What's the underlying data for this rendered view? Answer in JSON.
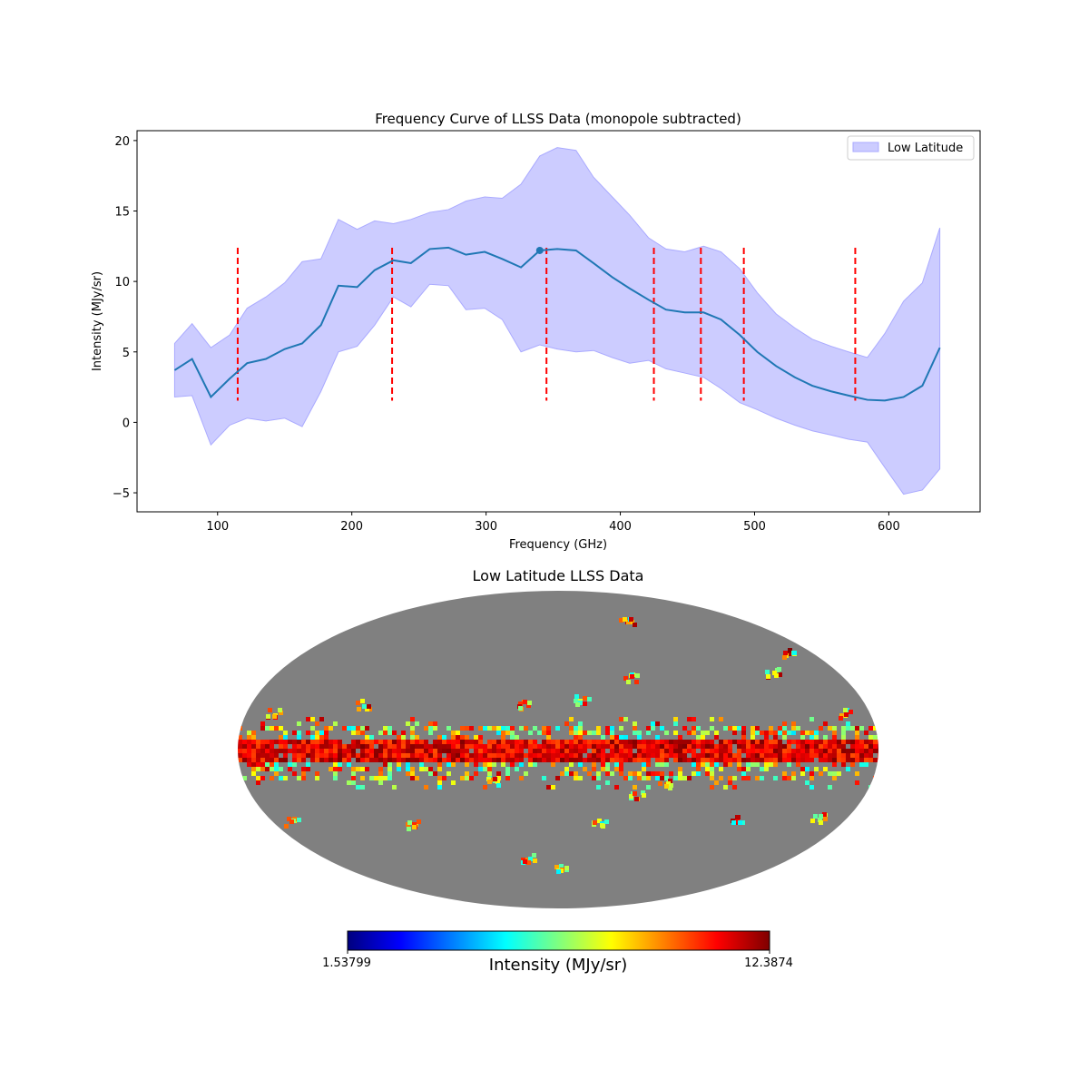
{
  "chart_data": [
    {
      "type": "line",
      "title": "Frequency Curve of LLSS Data (monopole subtracted)",
      "xlabel": "Frequency (GHz)",
      "ylabel": "Intensity (MJy/sr)",
      "xlim": [
        40,
        668
      ],
      "ylim": [
        -6.35,
        20.7
      ],
      "xticks": [
        100,
        200,
        300,
        400,
        500,
        600
      ],
      "yticks": [
        -5,
        0,
        5,
        10,
        15,
        20
      ],
      "legend": {
        "label": "Low Latitude",
        "placement": "top-right"
      },
      "colors": {
        "line": "#1f77b4",
        "band": "#ccccff",
        "band_edge": "#aaaaff",
        "vlines": "#ff0000"
      },
      "x": [
        68,
        81,
        95,
        109,
        122,
        136,
        150,
        163,
        177,
        190,
        204,
        217,
        231,
        244,
        258,
        272,
        285,
        299,
        312,
        326,
        340,
        353,
        367,
        380,
        394,
        407,
        421,
        434,
        448,
        462,
        475,
        489,
        502,
        516,
        530,
        543,
        557,
        570,
        584,
        597,
        611,
        625,
        638
      ],
      "series": [
        {
          "name": "mean",
          "values": [
            3.7,
            4.5,
            1.8,
            3.1,
            4.2,
            4.5,
            5.2,
            5.6,
            6.9,
            9.7,
            9.6,
            10.8,
            11.5,
            11.3,
            12.3,
            12.4,
            11.9,
            12.1,
            11.6,
            11.0,
            12.2,
            12.3,
            12.2,
            11.3,
            10.3,
            9.5,
            8.7,
            8.0,
            7.8,
            7.8,
            7.3,
            6.2,
            5.0,
            4.0,
            3.2,
            2.6,
            2.2,
            1.9,
            1.6,
            1.55,
            1.8,
            2.6,
            5.3
          ]
        },
        {
          "name": "upper",
          "values": [
            5.6,
            7.0,
            5.3,
            6.2,
            8.1,
            8.9,
            9.9,
            11.4,
            11.6,
            14.4,
            13.7,
            14.3,
            14.1,
            14.4,
            14.9,
            15.1,
            15.7,
            16.0,
            15.9,
            16.9,
            18.9,
            19.5,
            19.3,
            17.4,
            16.0,
            14.7,
            13.1,
            12.3,
            12.1,
            12.5,
            12.1,
            10.9,
            9.2,
            7.7,
            6.7,
            5.9,
            5.4,
            5.0,
            4.6,
            6.3,
            8.6,
            9.9,
            13.8
          ]
        },
        {
          "name": "lower",
          "values": [
            1.8,
            1.9,
            -1.6,
            -0.2,
            0.3,
            0.1,
            0.3,
            -0.3,
            2.2,
            5.0,
            5.4,
            6.9,
            8.9,
            8.2,
            9.8,
            9.7,
            8.0,
            8.1,
            7.3,
            5.0,
            5.5,
            5.2,
            5.0,
            5.1,
            4.6,
            4.2,
            4.4,
            3.8,
            3.5,
            3.2,
            2.4,
            1.4,
            0.9,
            0.3,
            -0.2,
            -0.6,
            -0.9,
            -1.2,
            -1.4,
            -3.2,
            -5.1,
            -4.8,
            -3.3
          ]
        }
      ],
      "highlight_point": {
        "x": 340,
        "y": 12.2
      },
      "vlines": {
        "x": [
          115,
          230,
          345,
          425,
          460,
          492,
          575
        ],
        "ymin": 1.54,
        "ymax": 12.39
      }
    },
    {
      "type": "heatmap",
      "title": "Low Latitude LLSS Data",
      "projection": "mollweide",
      "colorbar": {
        "label": "Intensity (MJy/sr)",
        "min_label": "1.53799",
        "max_label": "12.3874",
        "min": 1.53799,
        "max": 12.3874,
        "colormap": "jet"
      },
      "masked_color": "#808080"
    }
  ]
}
